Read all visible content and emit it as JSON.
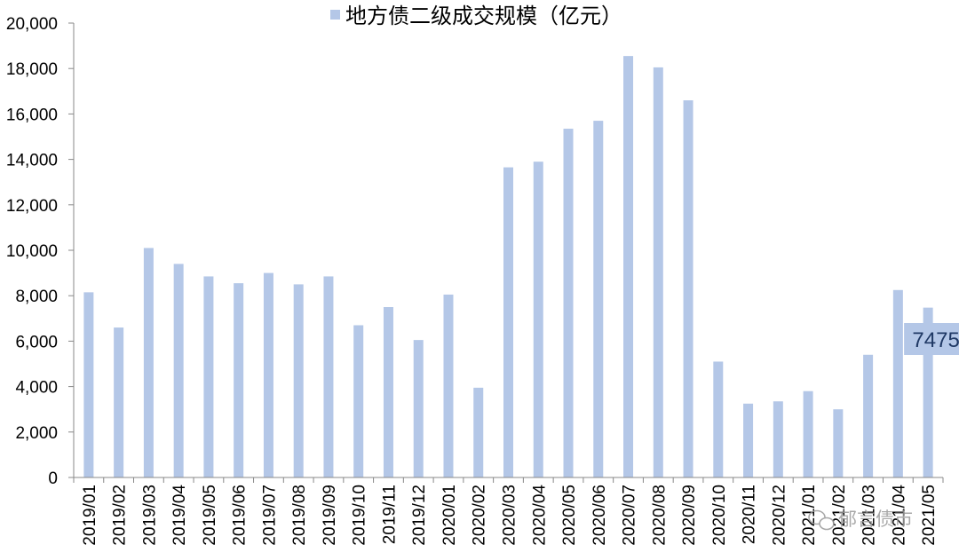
{
  "chart_data": {
    "type": "bar",
    "legend": "地方债二级成交规模（亿元）",
    "legend_position": "top-center",
    "categories": [
      "2019/01",
      "2019/02",
      "2019/03",
      "2019/04",
      "2019/05",
      "2019/06",
      "2019/07",
      "2019/08",
      "2019/09",
      "2019/10",
      "2019/11",
      "2019/12",
      "2020/01",
      "2020/02",
      "2020/03",
      "2020/04",
      "2020/05",
      "2020/06",
      "2020/07",
      "2020/08",
      "2020/09",
      "2020/10",
      "2020/11",
      "2020/12",
      "2021/01",
      "2021/02",
      "2021/03",
      "2021/04",
      "2021/05"
    ],
    "series": [
      {
        "name": "地方债二级成交规模（亿元）",
        "values": [
          8150,
          6600,
          10100,
          9400,
          8850,
          8550,
          9000,
          8500,
          8850,
          6700,
          7500,
          6050,
          8050,
          3950,
          13650,
          13900,
          15350,
          15700,
          18550,
          18050,
          16600,
          5100,
          3250,
          3350,
          3800,
          3000,
          5400,
          8250,
          7475
        ],
        "color": "#b4c7e7"
      }
    ],
    "ylim": [
      0,
      20000
    ],
    "yticks": [
      "0",
      "2,000",
      "4,000",
      "6,000",
      "8,000",
      "10,000",
      "12,000",
      "14,000",
      "16,000",
      "18,000",
      "20,000"
    ],
    "grid": false,
    "annotation": {
      "category": "2021/05",
      "text": "7475",
      "box_color": "#b4c7e7"
    }
  },
  "watermark": {
    "text": "郁言债市",
    "icon": "wechat-icon"
  }
}
